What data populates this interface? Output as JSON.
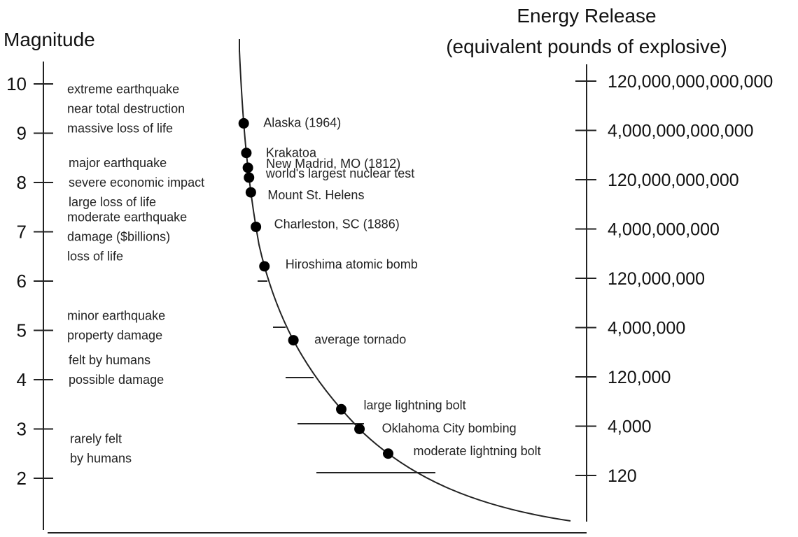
{
  "left_axis": {
    "title": "Magnitude",
    "ticks": [
      {
        "label": "10",
        "value": 10
      },
      {
        "label": "9",
        "value": 9
      },
      {
        "label": "8",
        "value": 8
      },
      {
        "label": "7",
        "value": 7
      },
      {
        "label": "6",
        "value": 6
      },
      {
        "label": "5",
        "value": 5
      },
      {
        "label": "4",
        "value": 4
      },
      {
        "label": "3",
        "value": 3
      },
      {
        "label": "2",
        "value": 2
      }
    ]
  },
  "right_axis": {
    "title_line1": "Energy Release",
    "title_line2": "(equivalent pounds of explosive)",
    "ticks": [
      {
        "label": "120,000,000,000,000",
        "magnitude": 10
      },
      {
        "label": "4,000,000,000,000",
        "magnitude": 9
      },
      {
        "label": "120,000,000,000",
        "magnitude": 8
      },
      {
        "label": "4,000,000,000",
        "magnitude": 7
      },
      {
        "label": "120,000,000",
        "magnitude": 6
      },
      {
        "label": "4,000,000",
        "magnitude": 5
      },
      {
        "label": "120,000",
        "magnitude": 4
      },
      {
        "label": "4,000",
        "magnitude": 3
      },
      {
        "label": "120",
        "magnitude": 2
      }
    ]
  },
  "descriptions": [
    {
      "magnitude": 9.5,
      "lines": [
        "extreme earthquake",
        "near total destruction",
        "massive loss of life"
      ]
    },
    {
      "magnitude": 8.0,
      "lines": [
        "major earthquake",
        "severe economic impact",
        "large loss of life"
      ]
    },
    {
      "magnitude": 6.9,
      "lines": [
        "moderate earthquake",
        "damage ($billions)",
        "loss of life"
      ]
    },
    {
      "magnitude": 5.1,
      "lines": [
        "minor earthquake",
        "property damage"
      ]
    },
    {
      "magnitude": 4.2,
      "lines": [
        "felt by humans",
        "possible damage"
      ]
    },
    {
      "magnitude": 2.6,
      "lines": [
        "rarely felt",
        "by humans"
      ]
    }
  ],
  "events": [
    {
      "label": "Alaska (1964)",
      "magnitude": 9.2
    },
    {
      "label": "Krakatoa",
      "magnitude": 8.6
    },
    {
      "label": "New Madrid, MO (1812)",
      "magnitude": 8.3
    },
    {
      "label": "world's largest nuclear test",
      "magnitude": 8.1
    },
    {
      "label": "Mount St. Helens",
      "magnitude": 7.8
    },
    {
      "label": "Charleston, SC (1886)",
      "magnitude": 7.1
    },
    {
      "label": "Hiroshima atomic bomb",
      "magnitude": 6.3
    },
    {
      "label": "average tornado",
      "magnitude": 4.8
    },
    {
      "label": "large lightning bolt",
      "magnitude": 3.4
    },
    {
      "label": "Oklahoma City bombing",
      "magnitude": 3.0
    },
    {
      "label": "moderate lightning bolt",
      "magnitude": 2.5
    }
  ]
}
